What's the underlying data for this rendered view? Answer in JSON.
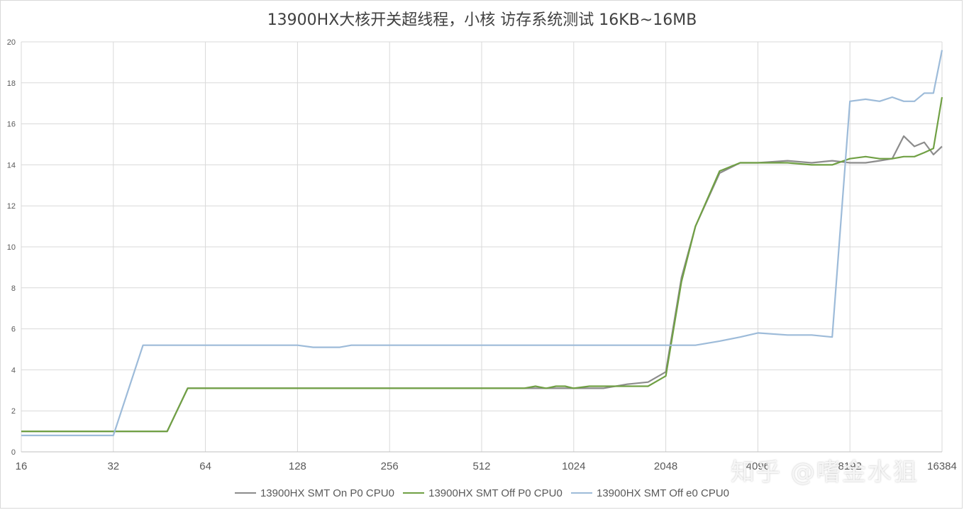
{
  "chart_data": {
    "type": "line",
    "title": "13900HX大核开关超线程，小核 访存系统测试 16KB~16MB",
    "xscale": "log2",
    "x_ticks": [
      16,
      32,
      64,
      128,
      256,
      512,
      1024,
      2048,
      4096,
      8192,
      16384
    ],
    "x_tick_labels": [
      "16",
      "32",
      "64",
      "128",
      "256",
      "512",
      "1024",
      "2048",
      "4096",
      "8192",
      "16384"
    ],
    "ylim": [
      0,
      20
    ],
    "y_ticks": [
      0,
      2,
      4,
      6,
      8,
      10,
      12,
      14,
      16,
      18,
      20
    ],
    "grid": true,
    "legend_position": "bottom",
    "series": [
      {
        "name": "13900HX SMT On P0 CPU0",
        "color": "#8c8c8c",
        "points": [
          [
            16,
            1.0
          ],
          [
            24,
            1.0
          ],
          [
            32,
            1.0
          ],
          [
            40,
            1.0
          ],
          [
            48,
            1.0
          ],
          [
            56,
            3.1
          ],
          [
            64,
            3.1
          ],
          [
            80,
            3.1
          ],
          [
            96,
            3.1
          ],
          [
            112,
            3.1
          ],
          [
            128,
            3.1
          ],
          [
            160,
            3.1
          ],
          [
            192,
            3.1
          ],
          [
            224,
            3.1
          ],
          [
            256,
            3.1
          ],
          [
            320,
            3.1
          ],
          [
            384,
            3.1
          ],
          [
            448,
            3.1
          ],
          [
            512,
            3.1
          ],
          [
            640,
            3.1
          ],
          [
            768,
            3.1
          ],
          [
            896,
            3.1
          ],
          [
            1024,
            3.1
          ],
          [
            1280,
            3.1
          ],
          [
            1536,
            3.3
          ],
          [
            1792,
            3.4
          ],
          [
            2048,
            3.9
          ],
          [
            2304,
            8.5
          ],
          [
            2560,
            11.0
          ],
          [
            3072,
            13.6
          ],
          [
            3584,
            14.1
          ],
          [
            4096,
            14.1
          ],
          [
            5120,
            14.2
          ],
          [
            6144,
            14.1
          ],
          [
            7168,
            14.2
          ],
          [
            8192,
            14.1
          ],
          [
            9216,
            14.1
          ],
          [
            10240,
            14.2
          ],
          [
            11264,
            14.3
          ],
          [
            12288,
            15.4
          ],
          [
            13312,
            14.9
          ],
          [
            14336,
            15.1
          ],
          [
            15360,
            14.5
          ],
          [
            16384,
            14.9
          ]
        ]
      },
      {
        "name": "13900HX SMT Off P0 CPU0",
        "color": "#70a044",
        "points": [
          [
            16,
            1.0
          ],
          [
            24,
            1.0
          ],
          [
            32,
            1.0
          ],
          [
            40,
            1.0
          ],
          [
            48,
            1.0
          ],
          [
            56,
            3.1
          ],
          [
            64,
            3.1
          ],
          [
            80,
            3.1
          ],
          [
            96,
            3.1
          ],
          [
            112,
            3.1
          ],
          [
            128,
            3.1
          ],
          [
            160,
            3.1
          ],
          [
            192,
            3.1
          ],
          [
            224,
            3.1
          ],
          [
            256,
            3.1
          ],
          [
            320,
            3.1
          ],
          [
            384,
            3.1
          ],
          [
            448,
            3.1
          ],
          [
            512,
            3.1
          ],
          [
            640,
            3.1
          ],
          [
            704,
            3.1
          ],
          [
            768,
            3.2
          ],
          [
            832,
            3.1
          ],
          [
            896,
            3.2
          ],
          [
            960,
            3.2
          ],
          [
            1024,
            3.1
          ],
          [
            1152,
            3.2
          ],
          [
            1280,
            3.2
          ],
          [
            1536,
            3.2
          ],
          [
            1792,
            3.2
          ],
          [
            2048,
            3.7
          ],
          [
            2304,
            8.3
          ],
          [
            2560,
            11.0
          ],
          [
            3072,
            13.7
          ],
          [
            3584,
            14.1
          ],
          [
            4096,
            14.1
          ],
          [
            5120,
            14.1
          ],
          [
            6144,
            14.0
          ],
          [
            7168,
            14.0
          ],
          [
            8192,
            14.3
          ],
          [
            9216,
            14.4
          ],
          [
            10240,
            14.3
          ],
          [
            11264,
            14.3
          ],
          [
            12288,
            14.4
          ],
          [
            13312,
            14.4
          ],
          [
            14336,
            14.6
          ],
          [
            15360,
            14.8
          ],
          [
            16384,
            17.3
          ]
        ]
      },
      {
        "name": "13900HX SMT Off e0 CPU0",
        "color": "#9dbbd9",
        "points": [
          [
            16,
            0.8
          ],
          [
            24,
            0.8
          ],
          [
            32,
            0.8
          ],
          [
            40,
            5.2
          ],
          [
            48,
            5.2
          ],
          [
            56,
            5.2
          ],
          [
            64,
            5.2
          ],
          [
            80,
            5.2
          ],
          [
            96,
            5.2
          ],
          [
            112,
            5.2
          ],
          [
            128,
            5.2
          ],
          [
            144,
            5.1
          ],
          [
            160,
            5.1
          ],
          [
            176,
            5.1
          ],
          [
            192,
            5.2
          ],
          [
            224,
            5.2
          ],
          [
            256,
            5.2
          ],
          [
            320,
            5.2
          ],
          [
            384,
            5.2
          ],
          [
            448,
            5.2
          ],
          [
            512,
            5.2
          ],
          [
            640,
            5.2
          ],
          [
            768,
            5.2
          ],
          [
            896,
            5.2
          ],
          [
            1024,
            5.2
          ],
          [
            1280,
            5.2
          ],
          [
            1536,
            5.2
          ],
          [
            1792,
            5.2
          ],
          [
            2048,
            5.2
          ],
          [
            2560,
            5.2
          ],
          [
            3072,
            5.4
          ],
          [
            3584,
            5.6
          ],
          [
            4096,
            5.8
          ],
          [
            5120,
            5.7
          ],
          [
            6144,
            5.7
          ],
          [
            7168,
            5.6
          ],
          [
            8192,
            17.1
          ],
          [
            9216,
            17.2
          ],
          [
            10240,
            17.1
          ],
          [
            11264,
            17.3
          ],
          [
            12288,
            17.1
          ],
          [
            13312,
            17.1
          ],
          [
            14336,
            17.5
          ],
          [
            15360,
            17.5
          ],
          [
            16384,
            19.6
          ]
        ]
      }
    ]
  },
  "watermark": "知乎 @嗜金水狙"
}
